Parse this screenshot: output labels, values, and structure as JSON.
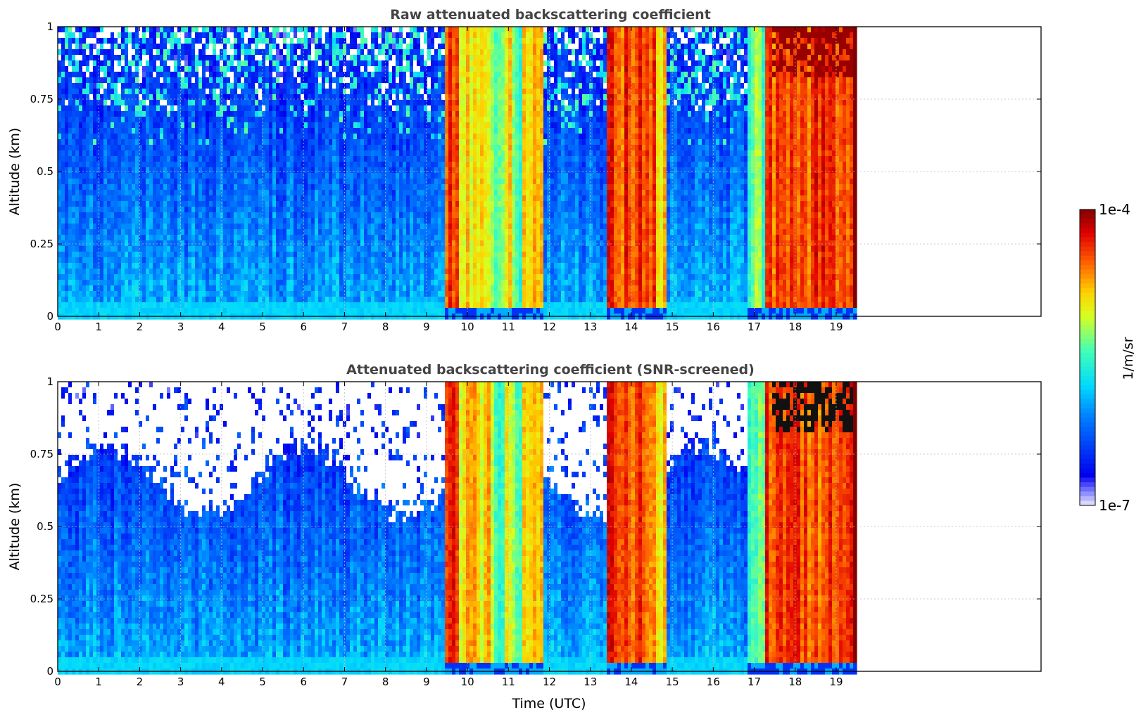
{
  "chart_data": [
    {
      "type": "heatmap",
      "title": "Raw attenuated backscattering coefficient",
      "xlabel": "",
      "ylabel": "Altitude (km)",
      "xlim": [
        0,
        24
      ],
      "ylim": [
        0,
        1
      ],
      "x_ticks": [
        "0",
        "1",
        "2",
        "3",
        "4",
        "5",
        "6",
        "7",
        "8",
        "9",
        "10",
        "11",
        "12",
        "13",
        "14",
        "15",
        "16",
        "17",
        "18",
        "19"
      ],
      "y_ticks": [
        "0",
        "0.25",
        "0.5",
        "0.75",
        "1"
      ],
      "grid": true,
      "data_extent_hours": [
        0,
        19.45
      ],
      "value_scale": "log",
      "regimes": [
        {
          "t_start": 0.0,
          "t_end": 9.45,
          "level": "low"
        },
        {
          "t_start": 9.45,
          "t_end": 9.75,
          "level": "very-high"
        },
        {
          "t_start": 9.75,
          "t_end": 10.6,
          "level": "high"
        },
        {
          "t_start": 10.6,
          "t_end": 10.95,
          "level": "mid"
        },
        {
          "t_start": 10.95,
          "t_end": 11.1,
          "level": "high"
        },
        {
          "t_start": 11.1,
          "t_end": 11.35,
          "level": "mid"
        },
        {
          "t_start": 11.35,
          "t_end": 11.85,
          "level": "high"
        },
        {
          "t_start": 11.85,
          "t_end": 13.4,
          "level": "low"
        },
        {
          "t_start": 13.4,
          "t_end": 14.6,
          "level": "very-high"
        },
        {
          "t_start": 14.6,
          "t_end": 14.9,
          "level": "high"
        },
        {
          "t_start": 14.9,
          "t_end": 16.8,
          "level": "low"
        },
        {
          "t_start": 16.8,
          "t_end": 17.3,
          "level": "mid"
        },
        {
          "t_start": 17.3,
          "t_end": 19.45,
          "level": "very-high"
        }
      ]
    },
    {
      "type": "heatmap",
      "title": "Attenuated backscattering coefficient (SNR-screened)",
      "xlabel": "Time (UTC)",
      "ylabel": "Altitude (km)",
      "xlim": [
        0,
        24
      ],
      "ylim": [
        0,
        1
      ],
      "x_ticks": [
        "0",
        "1",
        "2",
        "3",
        "4",
        "5",
        "6",
        "7",
        "8",
        "9",
        "10",
        "11",
        "12",
        "13",
        "14",
        "15",
        "16",
        "17",
        "18",
        "19"
      ],
      "y_ticks": [
        "0",
        "0.25",
        "0.5",
        "0.75",
        "1"
      ],
      "grid": true,
      "data_extent_hours": [
        0,
        19.45
      ],
      "value_scale": "log",
      "screened": "white above noise limit"
    }
  ],
  "colorbar": {
    "label": "1/m/sr",
    "max_label": "1e-4",
    "min_label": "1e-7",
    "colormap": "jet",
    "scale": "log"
  }
}
